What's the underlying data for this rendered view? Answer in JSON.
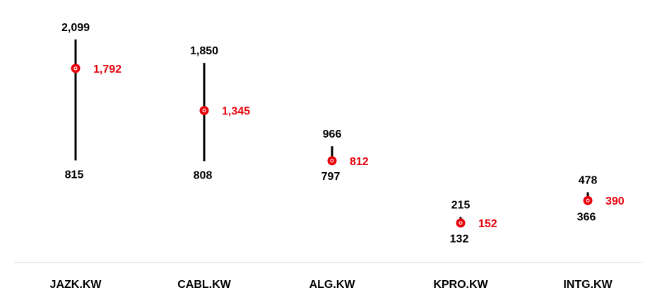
{
  "chart_data": {
    "type": "range-dot",
    "categories": [
      "JAZK.KW",
      "CABL.KW",
      "ALG.KW",
      "KPRO.KW",
      "INTG.KW"
    ],
    "high": [
      2099,
      1850,
      966,
      215,
      478
    ],
    "low": [
      815,
      808,
      797,
      132,
      366
    ],
    "current": [
      1792,
      1345,
      812,
      152,
      390
    ],
    "high_labels": [
      "2,099",
      "1,850",
      "966",
      "215",
      "478"
    ],
    "low_labels": [
      "815",
      "808",
      "797",
      "132",
      "366"
    ],
    "current_labels": [
      "1,792",
      "1,345",
      "812",
      "152",
      "390"
    ],
    "colors": {
      "range": "#000000",
      "current": "#e8000b",
      "label": "#000000",
      "current_label": "#e8000b",
      "axis": "#d9d9d9"
    },
    "grid": false
  }
}
